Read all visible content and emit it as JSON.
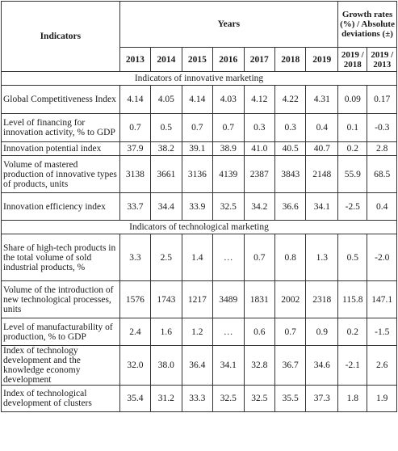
{
  "header": {
    "indicators": "Indicators",
    "years": "Years",
    "growth": "Growth rates (%) / Absolute deviations (±)",
    "year_cols": [
      "2013",
      "2014",
      "2015",
      "2016",
      "2017",
      "2018",
      "2019"
    ],
    "growth_cols": [
      "2019 / 2018",
      "2019 / 2013"
    ]
  },
  "sections": [
    {
      "title": "Indicators of innovative marketing",
      "rows": [
        {
          "indicator": "Global Competitiveness Index",
          "values": [
            "4.14",
            "4.05",
            "4.14",
            "4.03",
            "4.12",
            "4.22",
            "4.31",
            "0.09",
            "0.17"
          ]
        },
        {
          "indicator": "Level of financing for innovation activity, % to GDP",
          "values": [
            "0.7",
            "0.5",
            "0.7",
            "0.7",
            "0.3",
            "0.3",
            "0.4",
            "0.1",
            "-0.3"
          ]
        },
        {
          "indicator": "Innovation potential index",
          "values": [
            "37.9",
            "38.2",
            "39.1",
            "38.9",
            "41.0",
            "40.5",
            "40.7",
            "0.2",
            "2.8"
          ]
        },
        {
          "indicator": "Volume of mastered production of innovative types of products, units",
          "values": [
            "3138",
            "3661",
            "3136",
            "4139",
            "2387",
            "3843",
            "2148",
            "55.9",
            "68.5"
          ]
        },
        {
          "indicator": "Innovation efficiency index",
          "values": [
            "33.7",
            "34.4",
            "33.9",
            "32.5",
            "34.2",
            "36.6",
            "34.1",
            "-2.5",
            "0.4"
          ]
        }
      ]
    },
    {
      "title": "Indicators of technological marketing",
      "rows": [
        {
          "indicator": "Share of high-tech products in the total volume of sold industrial products, %",
          "values": [
            "3.3",
            "2.5",
            "1.4",
            "…",
            "0.7",
            "0.8",
            "1.3",
            "0.5",
            "-2.0"
          ]
        },
        {
          "indicator": "Volume of the introduction of new technological processes, units",
          "values": [
            "1576",
            "1743",
            "1217",
            "3489",
            "1831",
            "2002",
            "2318",
            "115.8",
            "147.1"
          ]
        },
        {
          "indicator": "Level of manufacturability of production, % to GDP",
          "values": [
            "2.4",
            "1.6",
            "1.2",
            "…",
            "0.6",
            "0.7",
            "0.9",
            "0.2",
            "-1.5"
          ]
        },
        {
          "indicator": "Index of technology development and the knowledge economy development",
          "values": [
            "32.0",
            "38.0",
            "36.4",
            "34.1",
            "32.8",
            "36.7",
            "34.6",
            "-2.1",
            "2.6"
          ]
        },
        {
          "indicator": "Index of technological development of clusters",
          "values": [
            "35.4",
            "31.2",
            "33.3",
            "32.5",
            "32.5",
            "35.5",
            "37.3",
            "1.8",
            "1.9"
          ]
        }
      ]
    }
  ]
}
